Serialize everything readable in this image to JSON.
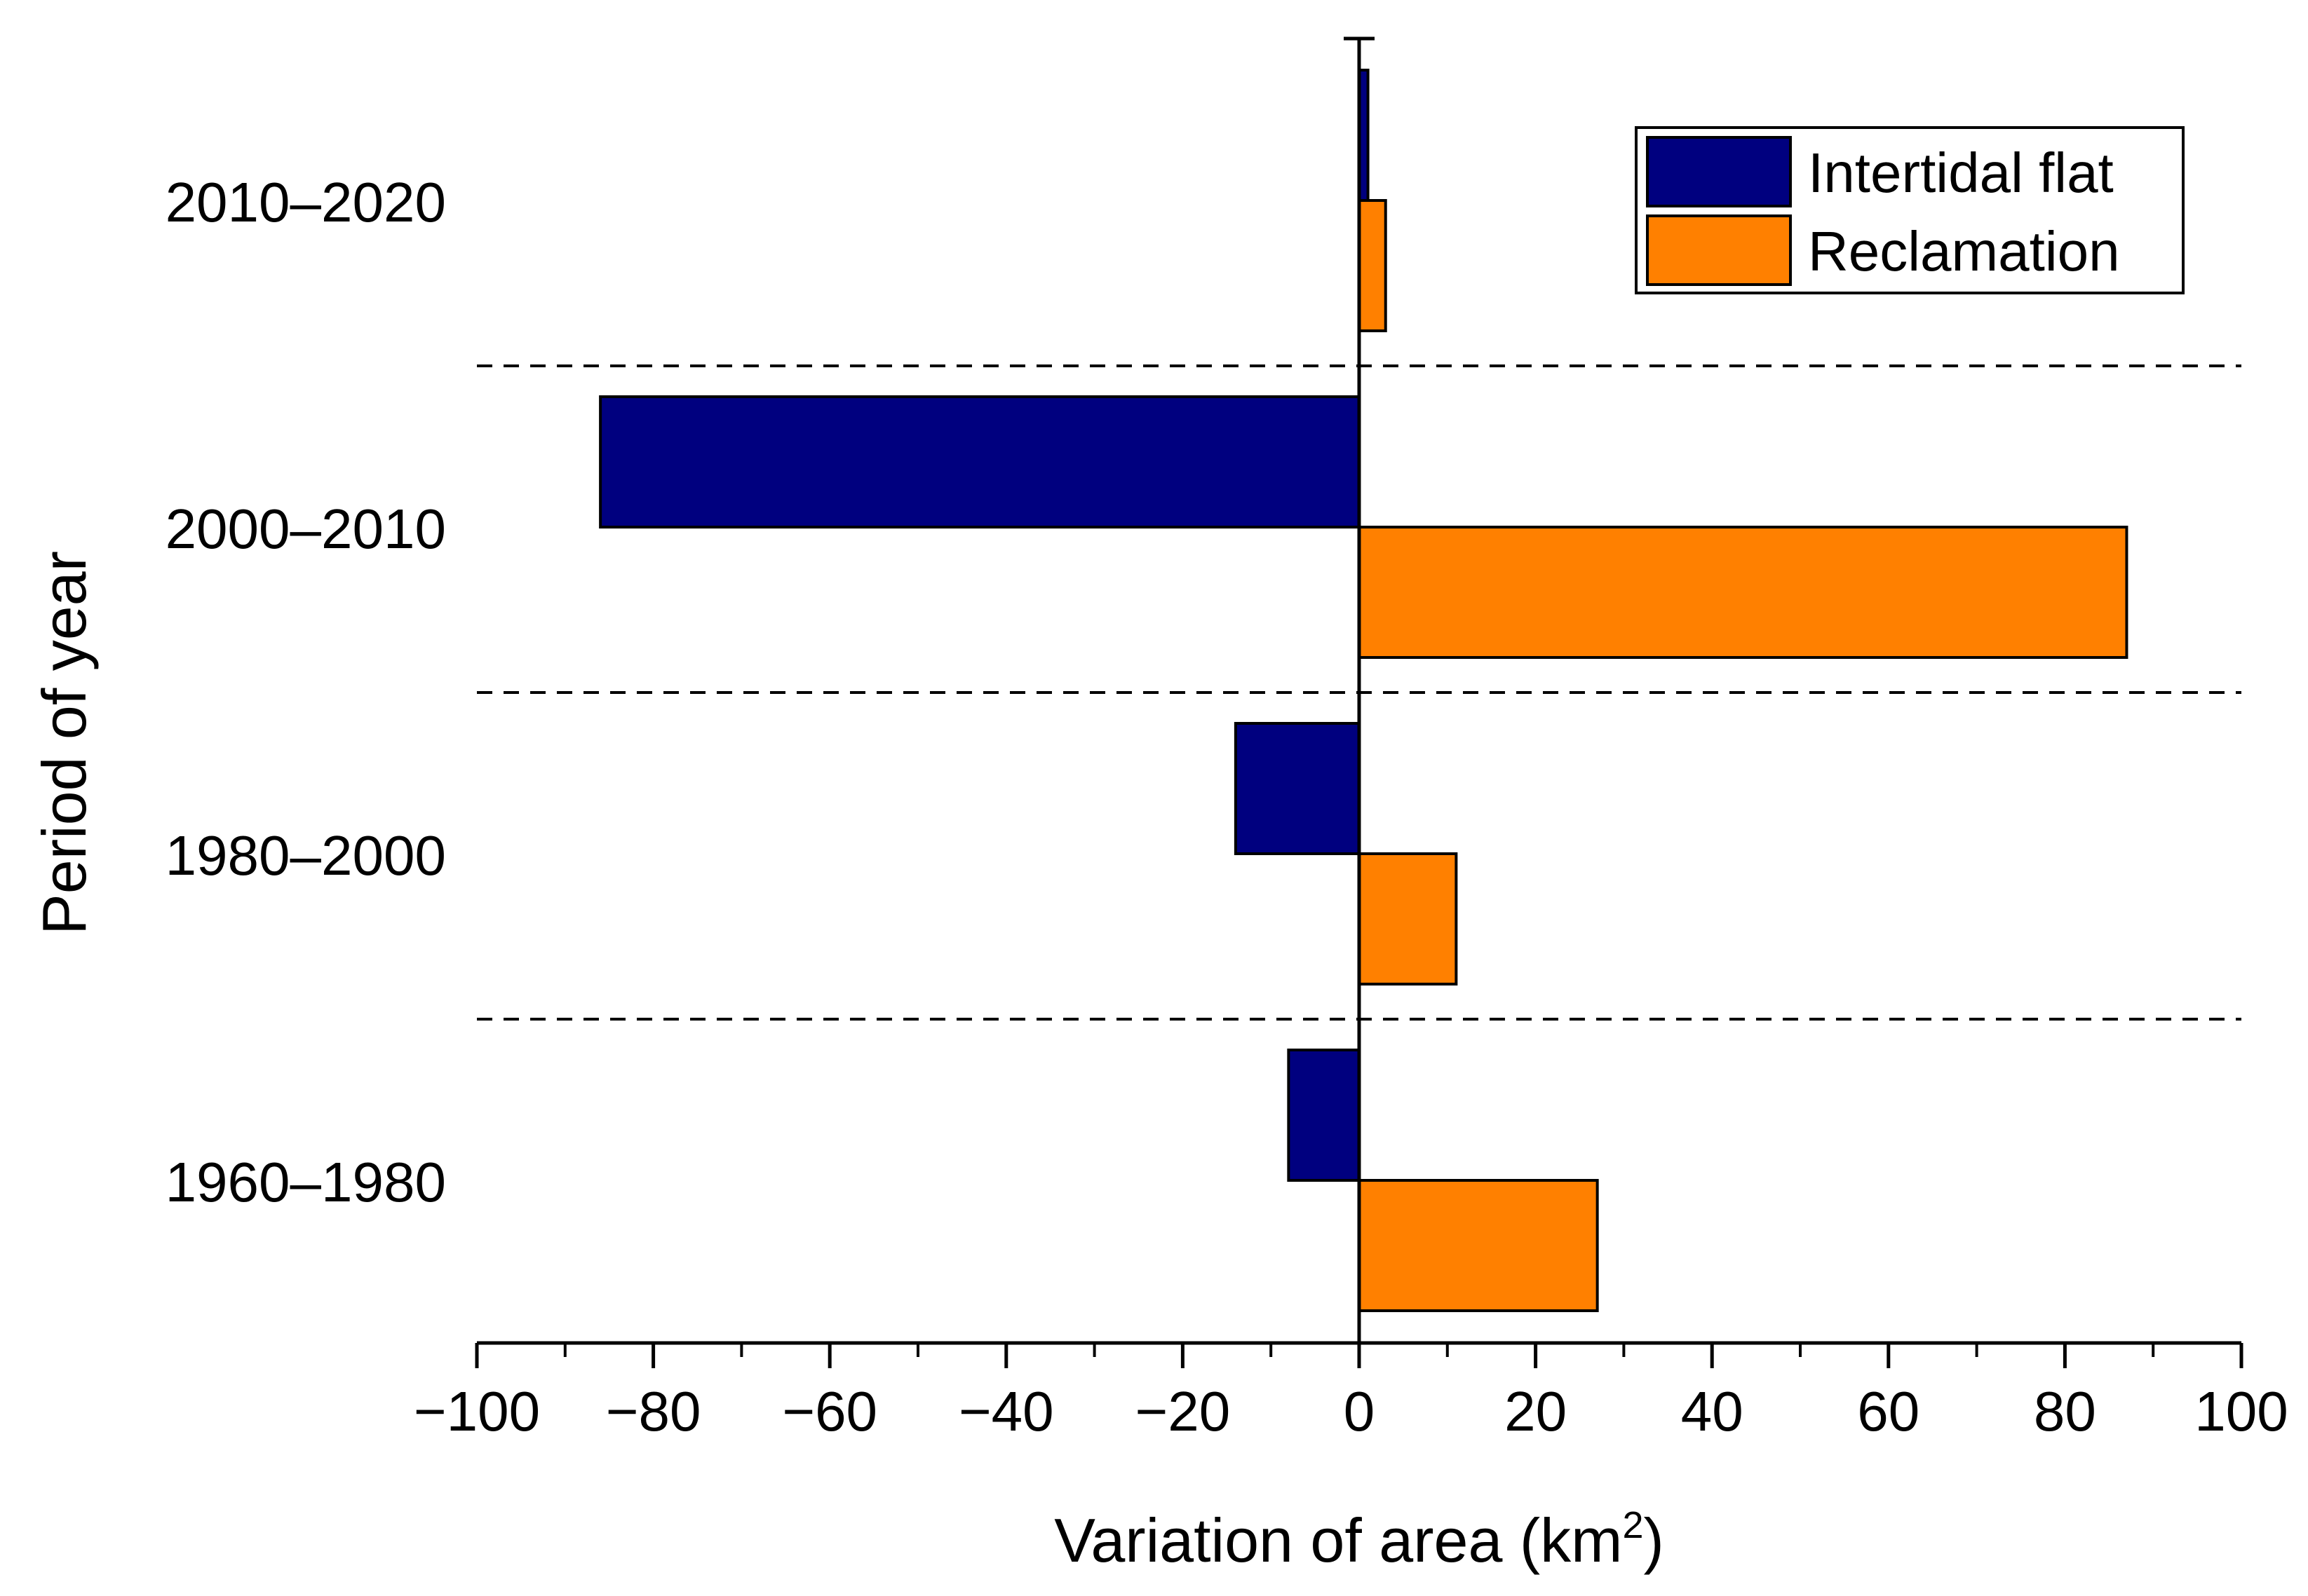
{
  "chart_data": {
    "type": "bar",
    "orientation": "horizontal",
    "categories": [
      "2010–2020",
      "2000–2010",
      "1980–2000",
      "1960–1980"
    ],
    "series": [
      {
        "name": "Intertidal flat",
        "color": "#00007f",
        "values": [
          1,
          -86,
          -14,
          -8
        ]
      },
      {
        "name": "Reclamation",
        "color": "#ff8000",
        "values": [
          3,
          87,
          11,
          27
        ]
      }
    ],
    "xlabel_main": "Variation of area (km",
    "xlabel_sup": "2",
    "xlabel_end": ")",
    "ylabel": "Period of year",
    "xlim": [
      -100,
      100
    ],
    "xticks": [
      -100,
      -80,
      -60,
      -40,
      -20,
      0,
      20,
      40,
      60,
      80,
      100
    ],
    "xtick_labels": [
      "−100",
      "−80",
      "−60",
      "−40",
      "−20",
      "0",
      "20",
      "40",
      "60",
      "80",
      "100"
    ],
    "separators": "dashed lines between periods",
    "legend_position": "top-right"
  }
}
